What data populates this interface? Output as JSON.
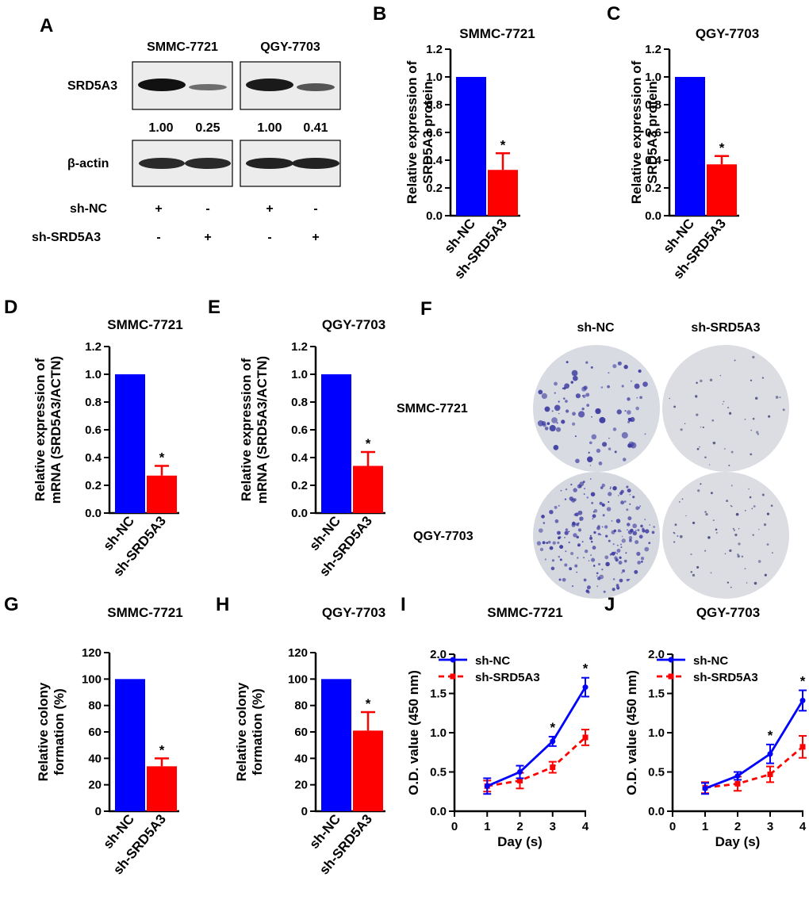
{
  "colors": {
    "blue": "#0000ff",
    "red": "#ff0000",
    "axis": "#000000",
    "dish": "#d9dbe2",
    "colony_dark": "#3b3aa0"
  },
  "panel_labels": [
    "A",
    "B",
    "C",
    "D",
    "E",
    "F",
    "G",
    "H",
    "I",
    "J"
  ],
  "blot": {
    "cell_lines": [
      "SMMC-7721",
      "QGY-7703"
    ],
    "protein_label": "SRD5A3",
    "loading_label": "β-actin",
    "quant": [
      "1.00",
      "0.25",
      "1.00",
      "0.41"
    ],
    "rows": [
      {
        "label": "sh-NC",
        "signs": [
          "+",
          "-",
          "+",
          "-"
        ]
      },
      {
        "label": "sh-SRD5A3",
        "signs": [
          "-",
          "+",
          "-",
          "+"
        ]
      }
    ]
  },
  "colony_images": {
    "columns": [
      "sh-NC",
      "sh-SRD5A3"
    ],
    "rows": [
      "SMMC-7721",
      "QGY-7703"
    ]
  },
  "chart_data": [
    {
      "id": "B",
      "type": "bar",
      "title": "SMMC-7721",
      "ylabel_lines": [
        "Relative expression of",
        "SRD5A3 protein"
      ],
      "categories": [
        "sh-NC",
        "sh-SRD5A3"
      ],
      "values": [
        1.0,
        0.33
      ],
      "errors": [
        0,
        0.12
      ],
      "significance": [
        "",
        "*"
      ],
      "ylim": [
        0,
        1.2
      ],
      "yticks": [
        "0.0",
        "0.2",
        "0.4",
        "0.6",
        "0.8",
        "1.0",
        "1.2"
      ]
    },
    {
      "id": "C",
      "type": "bar",
      "title": "QGY-7703",
      "ylabel_lines": [
        "Relative expression of",
        "SRD5A3 protein"
      ],
      "categories": [
        "sh-NC",
        "sh-SRD5A3"
      ],
      "values": [
        1.0,
        0.37
      ],
      "errors": [
        0,
        0.06
      ],
      "significance": [
        "",
        "*"
      ],
      "ylim": [
        0,
        1.2
      ],
      "yticks": [
        "0.0",
        "0.2",
        "0.4",
        "0.6",
        "0.8",
        "1.0",
        "1.2"
      ]
    },
    {
      "id": "D",
      "type": "bar",
      "title": "SMMC-7721",
      "ylabel_lines": [
        "Relative expression of",
        "mRNA (SRD5A3/ACTN)"
      ],
      "categories": [
        "sh-NC",
        "sh-SRD5A3"
      ],
      "values": [
        1.0,
        0.27
      ],
      "errors": [
        0,
        0.07
      ],
      "significance": [
        "",
        "*"
      ],
      "ylim": [
        0,
        1.2
      ],
      "yticks": [
        "0.0",
        "0.2",
        "0.4",
        "0.6",
        "0.8",
        "1.0",
        "1.2"
      ]
    },
    {
      "id": "E",
      "type": "bar",
      "title": "QGY-7703",
      "ylabel_lines": [
        "Relative expression of",
        "mRNA (SRD5A3/ACTN)"
      ],
      "categories": [
        "sh-NC",
        "sh-SRD5A3"
      ],
      "values": [
        1.0,
        0.34
      ],
      "errors": [
        0,
        0.1
      ],
      "significance": [
        "",
        "*"
      ],
      "ylim": [
        0,
        1.2
      ],
      "yticks": [
        "0.0",
        "0.2",
        "0.4",
        "0.6",
        "0.8",
        "1.0",
        "1.2"
      ]
    },
    {
      "id": "G",
      "type": "bar",
      "title": "SMMC-7721",
      "ylabel_lines": [
        "Relative colony",
        "formation (%)"
      ],
      "categories": [
        "sh-NC",
        "sh-SRD5A3"
      ],
      "values": [
        100,
        34
      ],
      "errors": [
        0,
        6
      ],
      "significance": [
        "",
        "*"
      ],
      "ylim": [
        0,
        120
      ],
      "yticks": [
        "0",
        "20",
        "40",
        "60",
        "80",
        "100",
        "120"
      ]
    },
    {
      "id": "H",
      "type": "bar",
      "title": "QGY-7703",
      "ylabel_lines": [
        "Relative colony",
        "formation (%)"
      ],
      "categories": [
        "sh-NC",
        "sh-SRD5A3"
      ],
      "values": [
        100,
        61
      ],
      "errors": [
        0,
        14
      ],
      "significance": [
        "",
        "*"
      ],
      "ylim": [
        0,
        120
      ],
      "yticks": [
        "0",
        "20",
        "40",
        "60",
        "80",
        "100",
        "120"
      ]
    },
    {
      "id": "I",
      "type": "line",
      "title": "SMMC-7721",
      "ylabel": "O.D. value (450 nm)",
      "xlabel": "Day (s)",
      "x": [
        1,
        2,
        3,
        4
      ],
      "xlim": [
        0,
        4
      ],
      "ylim": [
        0,
        2.0
      ],
      "xticks": [
        "0",
        "1",
        "2",
        "3",
        "4"
      ],
      "yticks": [
        "0.0",
        "0.5",
        "1.0",
        "1.5",
        "2.0"
      ],
      "series": [
        {
          "name": "sh-NC",
          "values": [
            0.32,
            0.5,
            0.89,
            1.58
          ],
          "errors": [
            0.1,
            0.08,
            0.06,
            0.12
          ]
        },
        {
          "name": "sh-SRD5A3",
          "values": [
            0.32,
            0.39,
            0.56,
            0.94
          ],
          "errors": [
            0.07,
            0.1,
            0.07,
            0.1
          ]
        }
      ],
      "significance": [
        "",
        "",
        "*",
        "*"
      ]
    },
    {
      "id": "J",
      "type": "line",
      "title": "QGY-7703",
      "ylabel": "O.D. value (450 nm)",
      "xlabel": "Day (s)",
      "x": [
        1,
        2,
        3,
        4
      ],
      "xlim": [
        0,
        4
      ],
      "ylim": [
        0,
        2.0
      ],
      "xticks": [
        "0",
        "1",
        "2",
        "3",
        "4"
      ],
      "yticks": [
        "0.0",
        "0.5",
        "1.0",
        "1.5",
        "2.0"
      ],
      "series": [
        {
          "name": "sh-NC",
          "values": [
            0.29,
            0.45,
            0.73,
            1.41
          ],
          "errors": [
            0.07,
            0.05,
            0.12,
            0.13
          ]
        },
        {
          "name": "sh-SRD5A3",
          "values": [
            0.3,
            0.35,
            0.47,
            0.82
          ],
          "errors": [
            0.07,
            0.09,
            0.1,
            0.14
          ]
        }
      ],
      "significance": [
        "",
        "",
        "*",
        "*"
      ]
    }
  ]
}
